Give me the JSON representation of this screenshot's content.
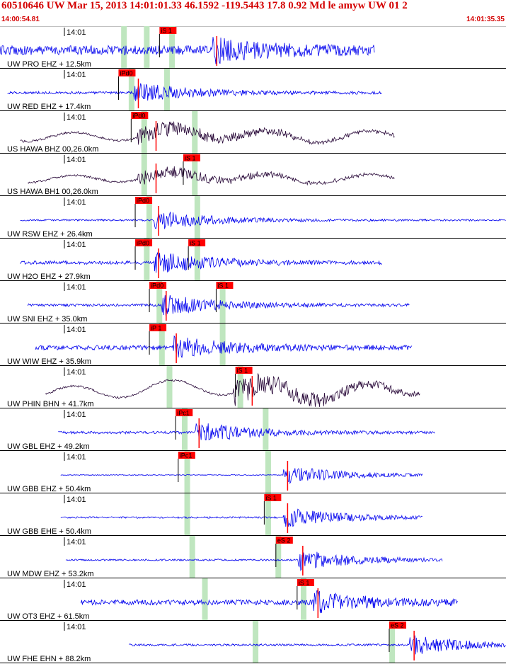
{
  "header": {
    "title": "60510646 UW Mar 15, 2013 14:01:01.33   46.1592 -119.5443 17.8 0.92 Md le amyw UW 01   2",
    "start_time": "14:00:54.81",
    "end_time": "14:01:35.35"
  },
  "colors": {
    "header_text": "#d40000",
    "trace_blue": "#0000ee",
    "trace_dark": "#2a0a3a",
    "pick_box": "#ff0000",
    "marker_green": "#bfe6bf",
    "divider": "#000000"
  },
  "chart_data": {
    "type": "line",
    "title": "60510646 UW Mar 15, 2013 14:01:01.33",
    "xlim": [
      "14:00:54.81",
      "14:01:35.35"
    ],
    "time_tick_label": "14:01",
    "traces": [
      {
        "label": "UW PRO EHZ + 12.5km",
        "color": "blue",
        "picks": [
          {
            "label": "iS 1",
            "pos": 0.318
          }
        ],
        "green": [
          0.245,
          0.29,
          0.34
        ],
        "start": 0.0,
        "end": 0.74,
        "amp": 0.55,
        "type": "noise",
        "event": 0.42
      },
      {
        "label": "UW RED EHZ + 17.4km",
        "color": "blue",
        "picks": [
          {
            "label": "iPd0",
            "pos": 0.237
          }
        ],
        "green": [
          0.26,
          0.33
        ],
        "start": 0.015,
        "end": 0.755,
        "amp": 0.15,
        "type": "noise",
        "event": 0.265
      },
      {
        "label": "US HAWA BHZ 00,26.0km",
        "color": "dark",
        "picks": [
          {
            "label": "iPd0",
            "pos": 0.262
          }
        ],
        "green": [
          0.285,
          0.385
        ],
        "start": 0.04,
        "end": 0.78,
        "amp": 0.22,
        "type": "wave",
        "event": 0.3
      },
      {
        "label": "US HAWA BH1 00,26.0km",
        "color": "dark",
        "picks": [
          {
            "label": "iS 1",
            "pos": 0.365
          }
        ],
        "green": [
          0.285,
          0.385
        ],
        "start": 0.055,
        "end": 0.78,
        "amp": 0.18,
        "type": "wave",
        "event": 0.3
      },
      {
        "label": "UW RSW EHZ + 26.4km",
        "color": "blue",
        "picks": [
          {
            "label": "iPd0",
            "pos": 0.27
          }
        ],
        "green": [
          0.295,
          0.39
        ],
        "start": 0.04,
        "end": 1.0,
        "amp": 0.1,
        "type": "noise",
        "event": 0.305
      },
      {
        "label": "UW H2O EHZ + 27.9km",
        "color": "blue",
        "picks": [
          {
            "label": "iPd0",
            "pos": 0.27
          },
          {
            "label": "iS 1",
            "pos": 0.375
          }
        ],
        "green": [
          0.29,
          0.39
        ],
        "start": 0.04,
        "end": 0.755,
        "amp": 0.2,
        "type": "noise",
        "event": 0.305
      },
      {
        "label": "UW SNI EHZ + 35.0km",
        "color": "blue",
        "picks": [
          {
            "label": "iPd0",
            "pos": 0.298
          },
          {
            "label": "iS 1",
            "pos": 0.43
          }
        ],
        "green": [
          0.315,
          0.44
        ],
        "start": 0.055,
        "end": 0.81,
        "amp": 0.15,
        "type": "noise",
        "event": 0.32
      },
      {
        "label": "UW WIW EHZ + 35.9km",
        "color": "blue",
        "picks": [
          {
            "label": "iP 1",
            "pos": 0.298
          }
        ],
        "green": [
          0.32,
          0.44
        ],
        "start": 0.07,
        "end": 0.815,
        "amp": 0.28,
        "type": "noise",
        "event": 0.34
      },
      {
        "label": "UW PHIN BHN + 41.7km",
        "color": "dark",
        "picks": [
          {
            "label": "iS 1",
            "pos": 0.468
          }
        ],
        "green": [
          0.335,
          0.475
        ],
        "start": 0.09,
        "end": 0.83,
        "amp": 0.32,
        "type": "wave",
        "event": 0.49
      },
      {
        "label": "UW GBL EHZ + 49.2km",
        "color": "blue",
        "picks": [
          {
            "label": "iPc1",
            "pos": 0.35
          }
        ],
        "green": [
          0.365,
          0.525
        ],
        "start": 0.115,
        "end": 0.86,
        "amp": 0.15,
        "type": "noise",
        "event": 0.385
      },
      {
        "label": "UW GBB EHZ + 50.4km",
        "color": "blue",
        "picks": [
          {
            "label": "iPc1",
            "pos": 0.355
          }
        ],
        "green": [
          0.37,
          0.53
        ],
        "start": 0.12,
        "end": 0.835,
        "amp": 0.05,
        "type": "noise",
        "event": 0.56
      },
      {
        "label": "UW GBB EHE + 50.4km",
        "color": "blue",
        "picks": [
          {
            "label": "iS 1",
            "pos": 0.525
          }
        ],
        "green": [
          0.37,
          0.53
        ],
        "start": 0.12,
        "end": 0.835,
        "amp": 0.1,
        "type": "noise",
        "event": 0.56
      },
      {
        "label": "UW MDW EHZ + 53.2km",
        "color": "blue",
        "picks": [
          {
            "label": "eS 2",
            "pos": 0.548
          }
        ],
        "green": [
          0.38,
          0.55
        ],
        "start": 0.13,
        "end": 0.875,
        "amp": 0.1,
        "type": "noise",
        "event": 0.59
      },
      {
        "label": "UW OT3 EHZ + 61.5km",
        "color": "blue",
        "picks": [
          {
            "label": "iS 1",
            "pos": 0.59
          }
        ],
        "green": [
          0.405,
          0.6
        ],
        "start": 0.16,
        "end": 0.905,
        "amp": 0.3,
        "type": "noise",
        "event": 0.62
      },
      {
        "label": "UW FHE EHN + 88.2km",
        "color": "blue",
        "picks": [
          {
            "label": "eS 2",
            "pos": 0.772
          }
        ],
        "green": [
          0.505,
          0.775
        ],
        "start": 0.255,
        "end": 1.0,
        "amp": 0.12,
        "type": "noise",
        "event": 0.81
      }
    ]
  }
}
